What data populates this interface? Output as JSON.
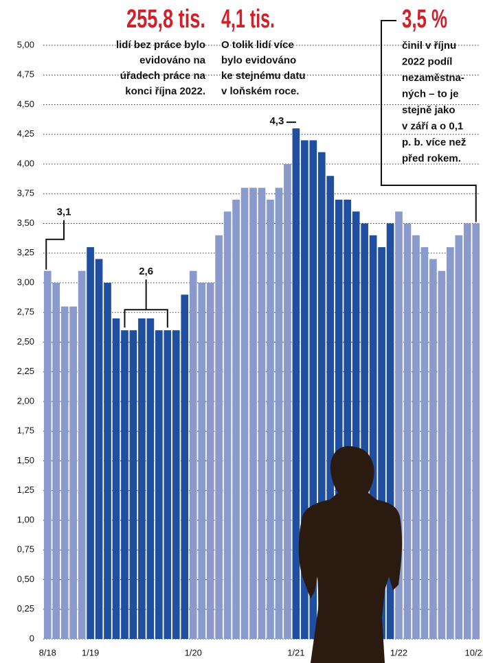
{
  "chart_data": {
    "type": "bar",
    "categories": [
      "8/18",
      null,
      null,
      null,
      null,
      "1/19",
      null,
      null,
      null,
      null,
      null,
      null,
      null,
      null,
      null,
      null,
      null,
      "1/20",
      null,
      null,
      null,
      null,
      null,
      null,
      null,
      null,
      null,
      null,
      null,
      "1/21",
      null,
      null,
      null,
      null,
      null,
      null,
      null,
      null,
      null,
      null,
      null,
      "1/22",
      null,
      null,
      null,
      null,
      null,
      null,
      null,
      null,
      "10/22"
    ],
    "values": [
      3.1,
      3.0,
      2.8,
      2.8,
      3.1,
      3.3,
      3.2,
      3.0,
      2.7,
      2.6,
      2.6,
      2.7,
      2.7,
      2.6,
      2.6,
      2.6,
      2.9,
      3.1,
      3.0,
      3.0,
      3.4,
      3.6,
      3.7,
      3.8,
      3.8,
      3.8,
      3.7,
      3.8,
      4.0,
      4.3,
      4.2,
      4.2,
      4.1,
      3.9,
      3.7,
      3.7,
      3.6,
      3.5,
      3.4,
      3.3,
      3.5,
      3.6,
      3.5,
      3.4,
      3.3,
      3.2,
      3.1,
      3.3,
      3.4,
      3.5,
      3.5
    ],
    "value_labels": [
      "3,1",
      null,
      null,
      null,
      null,
      null,
      null,
      null,
      null,
      "2,6",
      null,
      null,
      null,
      null,
      null,
      null,
      null,
      null,
      null,
      null,
      null,
      null,
      null,
      null,
      null,
      null,
      null,
      null,
      null,
      "4,3",
      null,
      null,
      null,
      null,
      null,
      null,
      null,
      null,
      null,
      null,
      null,
      null,
      null,
      null,
      null,
      null,
      null,
      null,
      null,
      null,
      null
    ],
    "colors": [
      "#8a9acd",
      "#8a9acd",
      "#8a9acd",
      "#8a9acd",
      "#8a9acd",
      "#1f4f9e",
      "#1f4f9e",
      "#1f4f9e",
      "#1f4f9e",
      "#1f4f9e",
      "#1f4f9e",
      "#1f4f9e",
      "#1f4f9e",
      "#1f4f9e",
      "#1f4f9e",
      "#1f4f9e",
      "#1f4f9e",
      "#8a9acd",
      "#8a9acd",
      "#8a9acd",
      "#8a9acd",
      "#8a9acd",
      "#8a9acd",
      "#8a9acd",
      "#8a9acd",
      "#8a9acd",
      "#8a9acd",
      "#8a9acd",
      "#8a9acd",
      "#1f4f9e",
      "#1f4f9e",
      "#1f4f9e",
      "#1f4f9e",
      "#1f4f9e",
      "#1f4f9e",
      "#1f4f9e",
      "#1f4f9e",
      "#1f4f9e",
      "#1f4f9e",
      "#1f4f9e",
      "#1f4f9e",
      "#8a9acd",
      "#8a9acd",
      "#8a9acd",
      "#8a9acd",
      "#8a9acd",
      "#8a9acd",
      "#8a9acd",
      "#8a9acd",
      "#8a9acd",
      "#8a9acd"
    ],
    "ylim": [
      0,
      5
    ],
    "yticks": [
      0,
      {
        "value": 0.25,
        "label": "0,25"
      },
      {
        "value": 0.5,
        "label": "0,50"
      },
      {
        "value": 0.75,
        "label": "0,75"
      },
      {
        "value": 1,
        "label": "1,00"
      },
      {
        "value": 1.25,
        "label": "1,25"
      },
      {
        "value": 1.5,
        "label": "1,50"
      },
      {
        "value": 1.75,
        "label": "1,75"
      },
      {
        "value": 2,
        "label": "2,00"
      },
      {
        "value": 2.25,
        "label": "2,25"
      },
      {
        "value": 2.5,
        "label": "2,50"
      },
      {
        "value": 2.75,
        "label": "2,75"
      },
      {
        "value": 3,
        "label": "3,00"
      },
      {
        "value": 3.25,
        "label": "3,25"
      },
      {
        "value": 3.5,
        "label": "3,50"
      },
      {
        "value": 3.75,
        "label": "3,75"
      },
      {
        "value": 4,
        "label": "4,00"
      },
      {
        "value": 4.25,
        "label": "4,25"
      },
      {
        "value": 4.5,
        "label": "4,50"
      },
      {
        "value": 4.75,
        "label": "4,75"
      },
      {
        "value": 5,
        "label": "5,00"
      }
    ],
    "grid": true,
    "headlines": [
      {
        "title": "255,8 tis.",
        "lines": [
          "lidí bez práce bylo",
          "evidováno na",
          "úřadech práce na",
          "konci října 2022."
        ]
      },
      {
        "title": "4,1 tis.",
        "lines": [
          "O tolik lidí více",
          "bylo evidováno",
          "ke stejnému datu",
          "v loňském roce."
        ]
      },
      {
        "title": "3,5 %",
        "lines": [
          "činil v říjnu",
          "2022 podíl",
          "nezaměstna-",
          "ných – to je",
          "stejně jako",
          "v září a o 0,1",
          "p. b. více než",
          "před rokem."
        ]
      }
    ]
  }
}
